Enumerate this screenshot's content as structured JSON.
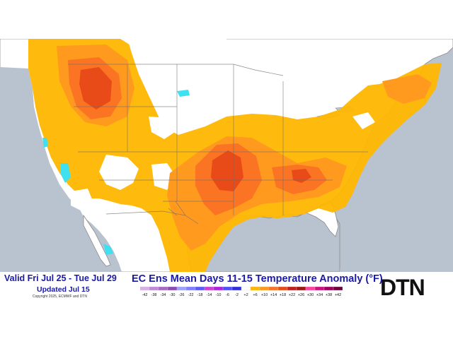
{
  "map": {
    "title": "EC Ens Mean Days 11-15 Temperature Anomaly (°F)",
    "valid": "Valid Fri Jul 25 - Tue Jul 29",
    "updated": "Updated Jul 15",
    "copyright": "Copyright 2025, ECMWF and DTN",
    "logo": "DTN",
    "colors": {
      "ocean": "#b9c2cf",
      "land": "#ffffff",
      "border": "#7f7f7f",
      "anomaly_2": "#ffb700",
      "anomaly_6": "#ff9a1f",
      "anomaly_10": "#fa7424",
      "anomaly_14": "#e84a18",
      "cool": "#3fe0f0"
    },
    "legend": {
      "labels": [
        "-42",
        "-38",
        "-34",
        "-30",
        "-26",
        "-22",
        "-18",
        "-14",
        "-10",
        "-6",
        "-2",
        "+2",
        "+6",
        "+10",
        "+14",
        "+18",
        "+22",
        "+26",
        "+30",
        "+34",
        "+38",
        "+42"
      ],
      "colors": [
        "#d8b0e8",
        "#c08ad8",
        "#a868c8",
        "#8c4cb8",
        "#a0a0ff",
        "#7f7fff",
        "#5a5aff",
        "#d040d0",
        "#b020e0",
        "#4f4fff",
        "#2f2fe0",
        "#ffffff",
        "#ffb700",
        "#ff9a1f",
        "#fa7424",
        "#e84a18",
        "#c71d1d",
        "#a01515",
        "#ff40a0",
        "#d01080",
        "#a00060",
        "#700040"
      ]
    }
  }
}
